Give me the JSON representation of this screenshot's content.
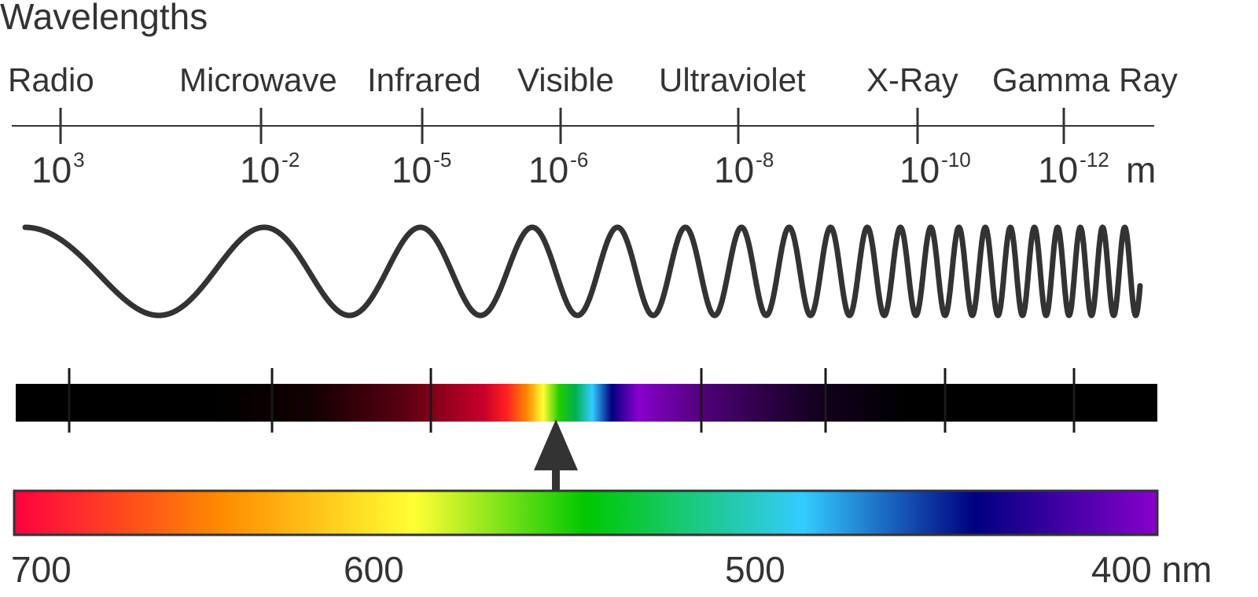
{
  "title": "Wavelengths",
  "bands": [
    {
      "name": "Radio",
      "exponent": "3"
    },
    {
      "name": "Microwave",
      "exponent": "-2"
    },
    {
      "name": "Infrared",
      "exponent": "-5"
    },
    {
      "name": "Visible",
      "exponent": "-6"
    },
    {
      "name": "Ultraviolet",
      "exponent": "-8"
    },
    {
      "name": "X-Ray",
      "exponent": "-10"
    },
    {
      "name": "Gamma Ray",
      "exponent": "-12"
    }
  ],
  "tick_base": "10",
  "length_unit": "m",
  "visible_scale": {
    "ticks": [
      "700",
      "600",
      "500",
      "400"
    ],
    "unit": "nm"
  },
  "colors": {
    "ink": "#333333",
    "spectrum": [
      "#ff0040",
      "#ff8a00",
      "#ffff33",
      "#00c800",
      "#33ccff",
      "#000080",
      "#8800cc"
    ]
  }
}
